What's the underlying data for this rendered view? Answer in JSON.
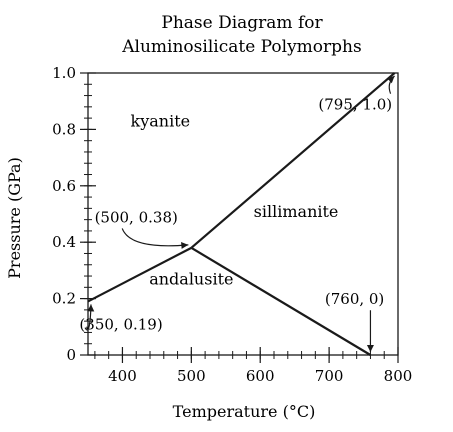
{
  "chart_data": {
    "type": "line",
    "title": "Phase Diagram for",
    "subtitle": "Aluminosilicate Polymorphs",
    "xlabel": "Temperature (°C)",
    "ylabel": "Pressure (GPa)",
    "xlim": [
      350,
      800
    ],
    "ylim": [
      0,
      1.0
    ],
    "xticks": [
      400,
      500,
      600,
      700,
      800
    ],
    "xtick_labels": [
      "400",
      "500",
      "600",
      "700",
      "800"
    ],
    "yticks": [
      0,
      0.2,
      0.4,
      0.6,
      0.8,
      1.0
    ],
    "ytick_labels": [
      "0",
      "0.2",
      "0.4",
      "0.6",
      "0.8",
      "1.0"
    ],
    "x_minor_step": 20,
    "y_minor_step": 0.04,
    "grid": false,
    "boundaries": [
      {
        "points": [
          [
            350,
            0.19
          ],
          [
            500,
            0.38
          ]
        ]
      },
      {
        "points": [
          [
            500,
            0.38
          ],
          [
            795,
            1.0
          ]
        ]
      },
      {
        "points": [
          [
            500,
            0.38
          ],
          [
            760,
            0
          ]
        ]
      }
    ],
    "regions": [
      {
        "label": "kyanite",
        "x": 455,
        "y": 0.81
      },
      {
        "label": "sillimanite",
        "x": 652,
        "y": 0.49
      },
      {
        "label": "andalusite",
        "x": 500,
        "y": 0.25
      }
    ],
    "annotations": [
      {
        "label": "(795, 1.0)",
        "text_x": 738,
        "text_y": 0.87,
        "point": [
          795,
          1.0
        ]
      },
      {
        "label": "(500, 0.38)",
        "text_x": 420,
        "text_y": 0.47,
        "point": [
          500,
          0.38
        ]
      },
      {
        "label": "(760, 0)",
        "text_x": 737,
        "text_y": 0.18,
        "point": [
          760,
          0
        ]
      },
      {
        "label": "(350, 0.19)",
        "text_x": 398,
        "text_y": 0.09,
        "point": [
          350,
          0.19
        ]
      }
    ]
  }
}
